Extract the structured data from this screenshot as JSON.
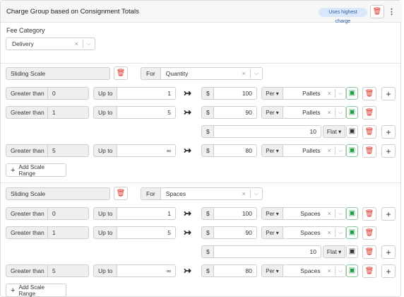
{
  "header": {
    "title": "Charge Group based on Consignment Totals",
    "badge": "Uses highest charge"
  },
  "fee": {
    "label": "Fee Category",
    "value": "Delivery"
  },
  "common": {
    "for_label": "For",
    "up_to": "Up to",
    "greater_than": "Greater than",
    "currency": "$",
    "per": "Per",
    "flat": "Flat",
    "add_range": "Add Scale Range",
    "clear": "×",
    "chev": "⌵",
    "caret": "▾",
    "arrow": "↣",
    "trash": "🗑",
    "save": "▣",
    "plus": "+",
    "kebab": "⋮"
  },
  "sections": [
    {
      "type": "Sliding Scale",
      "for_value": "Quantity",
      "rows": [
        {
          "gt": "0",
          "upto": "1",
          "price": "100",
          "unit": "Pallets"
        },
        {
          "gt": "1",
          "upto": "5",
          "price": "90",
          "unit": "Pallets"
        },
        {
          "flat": "10"
        },
        {
          "gt": "5",
          "upto": "∞",
          "price": "80",
          "unit": "Pallets"
        }
      ]
    },
    {
      "type": "Sliding Scale",
      "for_value": "Spaces",
      "rows": [
        {
          "gt": "0",
          "upto": "1",
          "price": "100",
          "unit": "Spaces"
        },
        {
          "gt": "1",
          "upto": "5",
          "price": "90",
          "unit": "Spaces"
        },
        {
          "flat": "10"
        },
        {
          "gt": "5",
          "upto": "∞",
          "price": "80",
          "unit": "Spaces"
        }
      ]
    }
  ]
}
